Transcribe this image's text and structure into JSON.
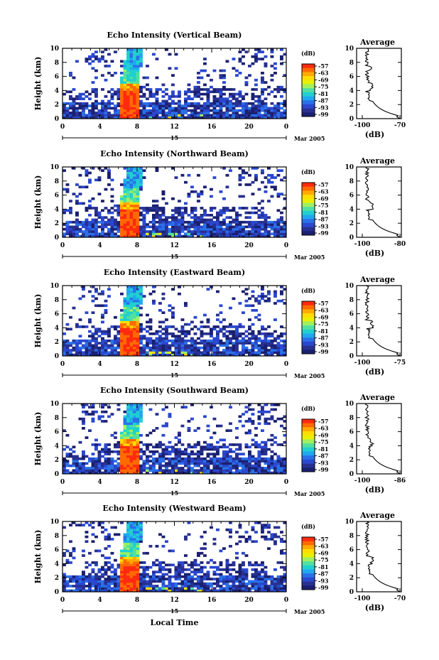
{
  "chart_data": {
    "type": "heatmap",
    "date_label": "15",
    "date_suffix": "Mar 2005",
    "xlabel_bottom": "Local Time",
    "colorbar": {
      "unit_label": "(dB)",
      "ticks": [
        "-57",
        "-63",
        "-69",
        "-75",
        "-81",
        "-87",
        "-93",
        "-99"
      ],
      "colors": [
        "#ff2a10",
        "#ff6a00",
        "#ffaa00",
        "#ffdd00",
        "#e8f000",
        "#a0f060",
        "#50e0a0",
        "#20d0d0",
        "#20a8f0",
        "#2a70e8",
        "#2a48d0",
        "#283090",
        "#1a2070"
      ]
    },
    "x_ticks": [
      "0",
      "4",
      "8",
      "12",
      "16",
      "20",
      "0"
    ],
    "y_ticks": [
      "0",
      "2",
      "4",
      "6",
      "8",
      "10"
    ],
    "ylabel": "Height (km)",
    "avg_title": "Average",
    "avg_xlabel": "(dB)",
    "panels": [
      {
        "title": "Echo Intensity (Vertical Beam)",
        "avg_ticks": [
          "-100",
          "-70"
        ],
        "avg_range": [
          -100,
          -70
        ]
      },
      {
        "title": "Echo Intensity (Northward Beam)",
        "avg_ticks": [
          "-100",
          "-80"
        ],
        "avg_range": [
          -100,
          -80
        ]
      },
      {
        "title": "Echo Intensity (Eastward Beam)",
        "avg_ticks": [
          "-100",
          "-75"
        ],
        "avg_range": [
          -100,
          -75
        ]
      },
      {
        "title": "Echo Intensity (Southward Beam)",
        "avg_ticks": [
          "-100",
          "-86"
        ],
        "avg_range": [
          -100,
          -86
        ]
      },
      {
        "title": "Echo Intensity (Westward Beam)",
        "avg_ticks": [
          "-100",
          "-70"
        ],
        "avg_range": [
          -100,
          -70
        ]
      }
    ],
    "x_range_hours": [
      0,
      24
    ],
    "y_range_km": [
      0,
      10
    ]
  }
}
